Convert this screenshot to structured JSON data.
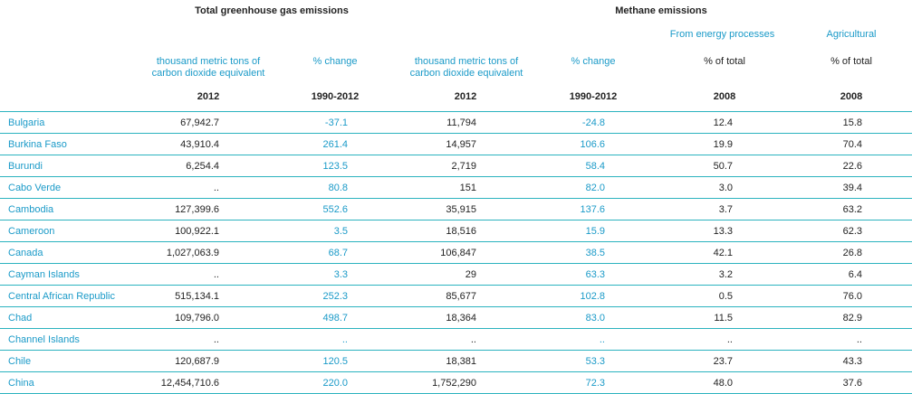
{
  "headers": {
    "group_total": "Total greenhouse gas emissions",
    "group_methane": "Methane emissions",
    "sub_energy": "From energy processes",
    "sub_agri": "Agricultural",
    "unit_ghg_2012": "thousand metric tons of carbon dioxide equivalent",
    "unit_ghg_change": "% change",
    "unit_ch4_2012": "thousand metric tons of carbon dioxide equivalent",
    "unit_ch4_change": "% change",
    "unit_energy": "% of total",
    "unit_agri": "% of total",
    "yr_ghg_2012": "2012",
    "yr_ghg_change": "1990-2012",
    "yr_ch4_2012": "2012",
    "yr_ch4_change": "1990-2012",
    "yr_energy": "2008",
    "yr_agri": "2008"
  },
  "rows": [
    {
      "country": "Bulgaria",
      "ghg": "67,942.7",
      "ghg_change": "-37.1",
      "ch4": "11,794",
      "ch4_change": "-24.8",
      "energy": "12.4",
      "agri": "15.8"
    },
    {
      "country": "Burkina Faso",
      "ghg": "43,910.4",
      "ghg_change": "261.4",
      "ch4": "14,957",
      "ch4_change": "106.6",
      "energy": "19.9",
      "agri": "70.4"
    },
    {
      "country": "Burundi",
      "ghg": "6,254.4",
      "ghg_change": "123.5",
      "ch4": "2,719",
      "ch4_change": "58.4",
      "energy": "50.7",
      "agri": "22.6"
    },
    {
      "country": "Cabo Verde",
      "ghg": "..",
      "ghg_change": "80.8",
      "ch4": "151",
      "ch4_change": "82.0",
      "energy": "3.0",
      "agri": "39.4"
    },
    {
      "country": "Cambodia",
      "ghg": "127,399.6",
      "ghg_change": "552.6",
      "ch4": "35,915",
      "ch4_change": "137.6",
      "energy": "3.7",
      "agri": "63.2"
    },
    {
      "country": "Cameroon",
      "ghg": "100,922.1",
      "ghg_change": "3.5",
      "ch4": "18,516",
      "ch4_change": "15.9",
      "energy": "13.3",
      "agri": "62.3"
    },
    {
      "country": "Canada",
      "ghg": "1,027,063.9",
      "ghg_change": "68.7",
      "ch4": "106,847",
      "ch4_change": "38.5",
      "energy": "42.1",
      "agri": "26.8"
    },
    {
      "country": "Cayman Islands",
      "ghg": "..",
      "ghg_change": "3.3",
      "ch4": "29",
      "ch4_change": "63.3",
      "energy": "3.2",
      "agri": "6.4"
    },
    {
      "country": "Central African Republic",
      "ghg": "515,134.1",
      "ghg_change": "252.3",
      "ch4": "85,677",
      "ch4_change": "102.8",
      "energy": "0.5",
      "agri": "76.0"
    },
    {
      "country": "Chad",
      "ghg": "109,796.0",
      "ghg_change": "498.7",
      "ch4": "18,364",
      "ch4_change": "83.0",
      "energy": "11.5",
      "agri": "82.9"
    },
    {
      "country": "Channel Islands",
      "ghg": "..",
      "ghg_change": "..",
      "ch4": "..",
      "ch4_change": "..",
      "energy": "..",
      "agri": ".."
    },
    {
      "country": "Chile",
      "ghg": "120,687.9",
      "ghg_change": "120.5",
      "ch4": "18,381",
      "ch4_change": "53.3",
      "energy": "23.7",
      "agri": "43.3"
    },
    {
      "country": "China",
      "ghg": "12,454,710.6",
      "ghg_change": "220.0",
      "ch4": "1,752,290",
      "ch4_change": "72.3",
      "energy": "48.0",
      "agri": "37.6"
    }
  ],
  "colors": {
    "accent": "#1a9ac8",
    "rule": "#2bb3bf",
    "text": "#222222"
  }
}
